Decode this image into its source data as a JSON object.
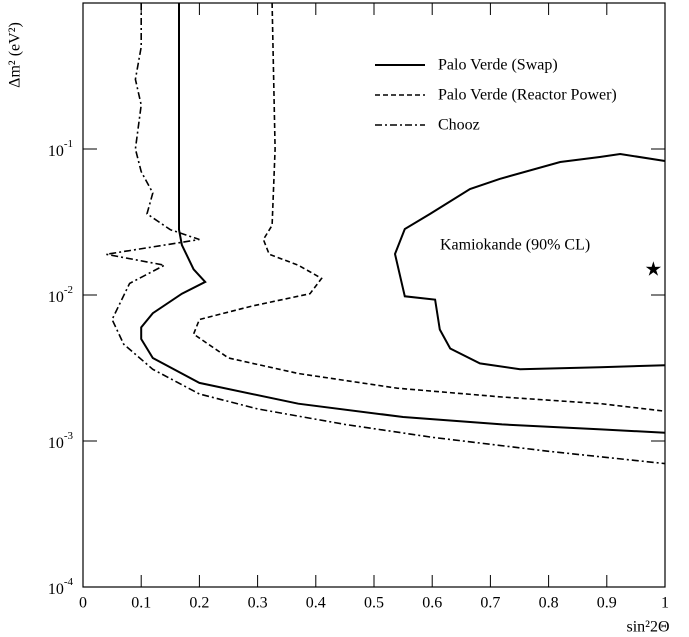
{
  "chart_data": {
    "type": "line",
    "x_label": "sin²2Θ",
    "y_label": "Δm² (eV²)",
    "xlim": [
      0,
      1
    ],
    "xticks": [
      0,
      0.1,
      0.2,
      0.3,
      0.4,
      0.5,
      0.6,
      0.7,
      0.8,
      0.9,
      1
    ],
    "ylim": [
      0.0001,
      1
    ],
    "yscale": "log",
    "yticks": [
      {
        "value": 0.0001,
        "label": "10-4"
      },
      {
        "value": 0.001,
        "label": "10-3"
      },
      {
        "value": 0.01,
        "label": "10-2"
      },
      {
        "value": 0.1,
        "label": "10-1"
      }
    ],
    "legend": "upper right",
    "series": [
      {
        "name": "Palo Verde (Swap)",
        "color": "#000000",
        "style": "solid",
        "x": [
          0.165,
          0.165,
          0.17,
          0.19,
          0.21,
          0.17,
          0.12,
          0.1,
          0.1,
          0.12,
          0.2,
          0.37,
          0.55,
          0.72,
          0.89,
          1.0
        ],
        "values": [
          1,
          0.028,
          0.022,
          0.015,
          0.0123,
          0.0102,
          0.0075,
          0.006,
          0.005,
          0.0037,
          0.0025,
          0.0018,
          0.00146,
          0.0013,
          0.0012,
          0.00114
        ]
      },
      {
        "name": "Palo Verde (Reactor Power)",
        "color": "#000000",
        "style": "dashed",
        "x": [
          0.325,
          0.33,
          0.325,
          0.31,
          0.32,
          0.37,
          0.41,
          0.39,
          0.29,
          0.2,
          0.19,
          0.25,
          0.37,
          0.54,
          0.72,
          0.89,
          1.0
        ],
        "values": [
          1,
          0.1,
          0.03,
          0.024,
          0.019,
          0.016,
          0.013,
          0.0102,
          0.0084,
          0.0068,
          0.0054,
          0.0037,
          0.0029,
          0.0023,
          0.002,
          0.0018,
          0.0016
        ]
      },
      {
        "name": "Chooz",
        "color": "#000000",
        "style": "dashdot",
        "x": [
          0.1,
          0.1,
          0.09,
          0.1,
          0.09,
          0.1,
          0.12,
          0.11,
          0.15,
          0.2,
          0.04,
          0.14,
          0.08,
          0.05,
          0.07,
          0.12,
          0.2,
          0.3,
          0.45,
          0.6,
          0.8,
          1.0
        ],
        "values": [
          1,
          0.5,
          0.3,
          0.2,
          0.1,
          0.07,
          0.05,
          0.036,
          0.028,
          0.024,
          0.019,
          0.016,
          0.012,
          0.0068,
          0.0046,
          0.0031,
          0.0021,
          0.00166,
          0.0013,
          0.00106,
          0.00085,
          0.0007
        ]
      }
    ],
    "region": {
      "label": "Kamiokande (90% CL)",
      "color": "#000000",
      "x": [
        1.0,
        0.923,
        0.888,
        0.82,
        0.716,
        0.665,
        0.596,
        0.553,
        0.536,
        0.553,
        0.605,
        0.613,
        0.631,
        0.682,
        0.751,
        0.888,
        1.0
      ],
      "values": [
        0.0828,
        0.0924,
        0.0882,
        0.0815,
        0.0624,
        0.0532,
        0.0359,
        0.0283,
        0.0191,
        0.0098,
        0.0093,
        0.0058,
        0.0043,
        0.0034,
        0.0031,
        0.0032,
        0.0033
      ]
    },
    "marker": {
      "x": 0.98,
      "y": 0.015
    }
  }
}
